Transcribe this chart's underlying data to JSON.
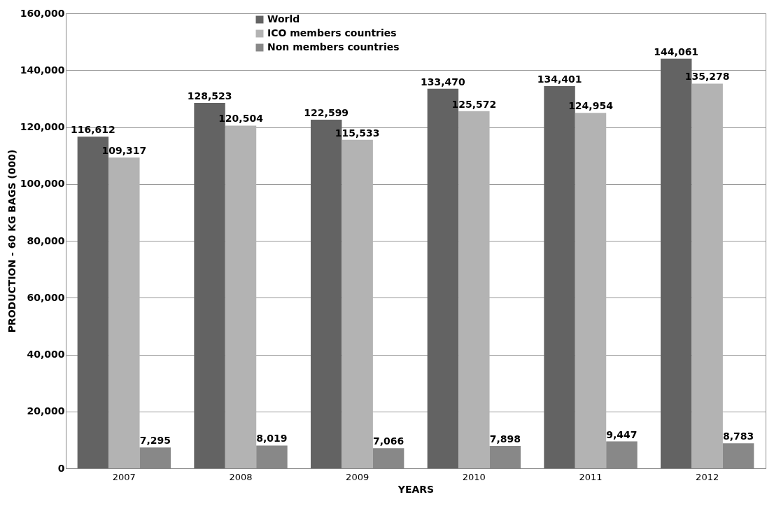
{
  "chart_data": {
    "type": "bar",
    "xlabel": "YEARS",
    "ylabel": "PRODUCTION - 60 KG BAGS (000)",
    "categories": [
      "2007",
      "2008",
      "2009",
      "2010",
      "2011",
      "2012"
    ],
    "series": [
      {
        "name": "World",
        "color": "#636363",
        "values": [
          116612,
          128523,
          122599,
          133470,
          134401,
          144061
        ],
        "value_labels": [
          "116,612",
          "128,523",
          "122,599",
          "133,470",
          "134,401",
          "144,061"
        ]
      },
      {
        "name": "ICO members countries",
        "color": "#b3b3b3",
        "values": [
          109317,
          120504,
          115533,
          125572,
          124954,
          135278
        ],
        "value_labels": [
          "109,317",
          "120,504",
          "115,533",
          "125,572",
          "124,954",
          "135,278"
        ]
      },
      {
        "name": "Non members countries",
        "color": "#888888",
        "values": [
          7295,
          8019,
          7066,
          7898,
          9447,
          8783
        ],
        "value_labels": [
          "7,295",
          "8,019",
          "7,066",
          "7,898",
          "9,447",
          "8,783"
        ]
      }
    ],
    "ylim": [
      0,
      160000
    ],
    "yticks": [
      0,
      {
        "value": 20000,
        "label": "20,000"
      },
      {
        "value": 40000,
        "label": "40,000"
      },
      {
        "value": 60000,
        "label": "60,000"
      },
      {
        "value": 80000,
        "label": "80,000"
      },
      {
        "value": 100000,
        "label": "100,000"
      },
      {
        "value": 120000,
        "label": "120,000"
      },
      {
        "value": 140000,
        "label": "140,000"
      },
      {
        "value": 160000,
        "label": "160,000"
      }
    ],
    "grid": "y",
    "legend": "top"
  }
}
